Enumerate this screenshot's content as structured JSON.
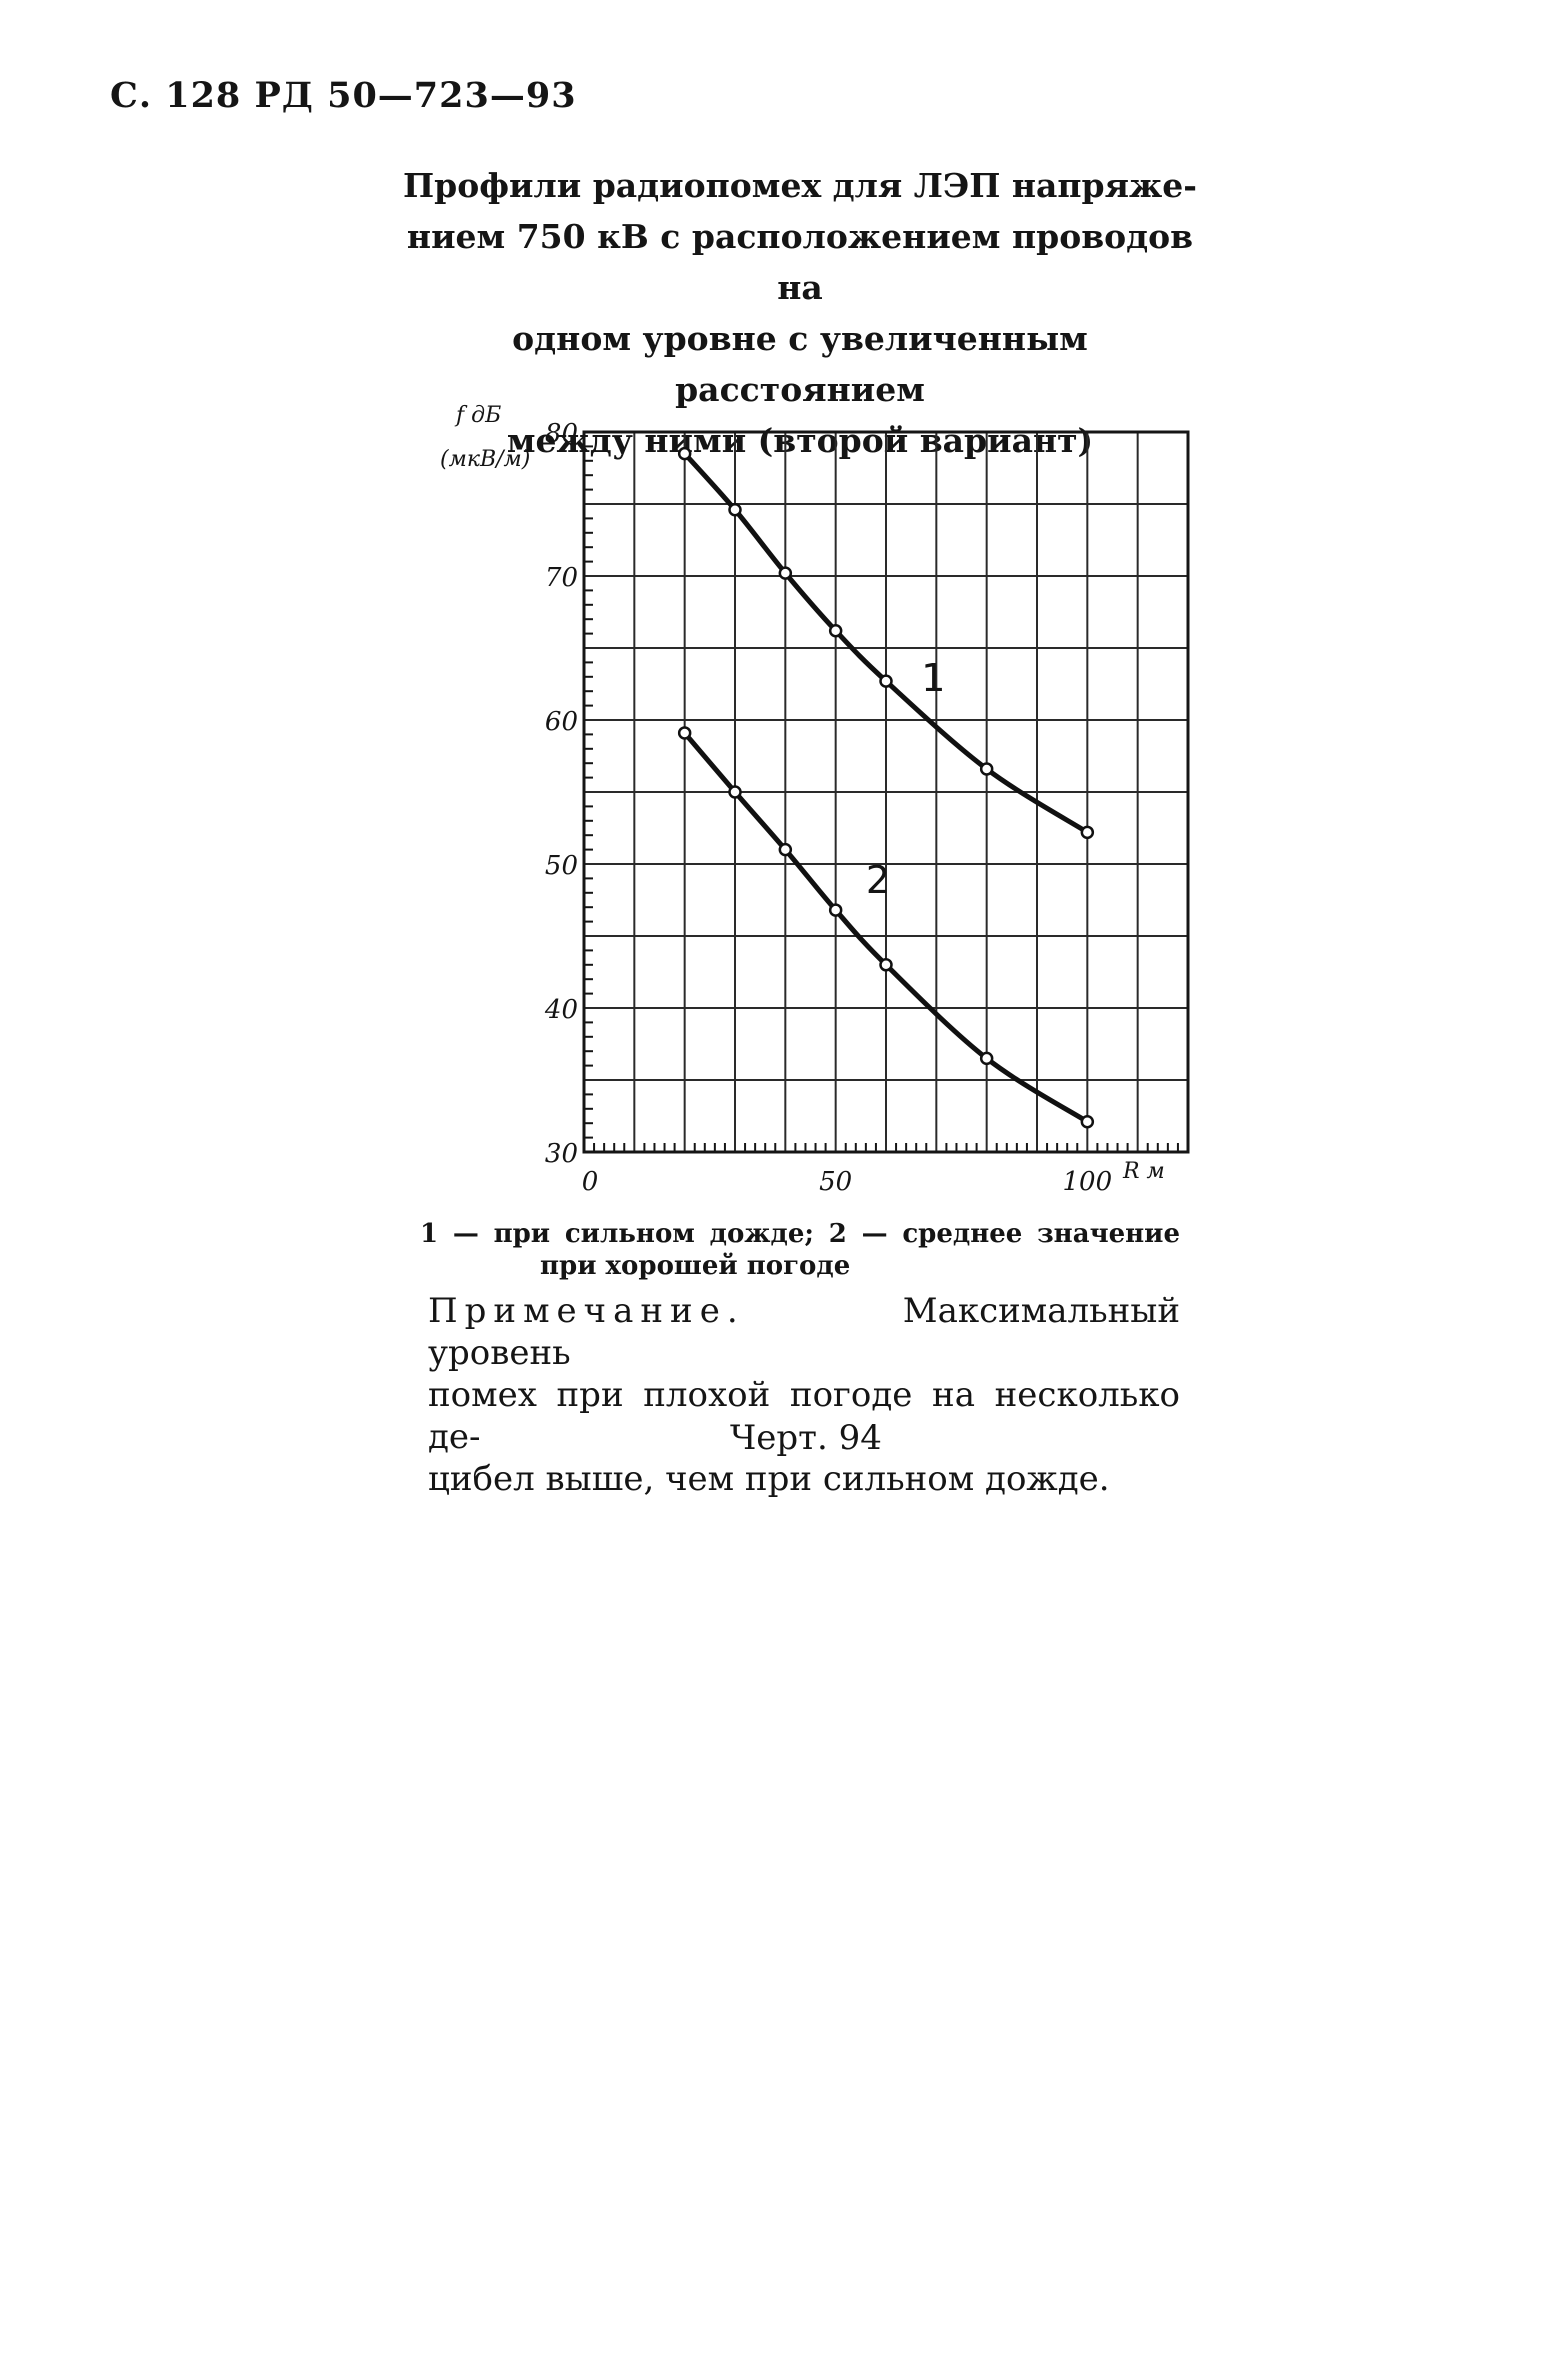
{
  "page": {
    "header": "С. 128 РД 50—723—93",
    "title_lines": [
      "Профили радиопомех для ЛЭП напряже-",
      "нием 750 кВ с расположением проводов на",
      "одном уровне с увеличенным расстоянием",
      "между ними (второй вариант)"
    ],
    "legend_line1": "1 — при сильном дожде; 2 — среднее значение",
    "legend_line2": "при хорошей погоде",
    "note_label": "Примечание.",
    "note_line1_rest": "Максимальный уровень",
    "note_line2": "помех при плохой погоде на несколько де-",
    "note_line3": "цибел выше, чем при сильном дожде.",
    "figure_label": "Черт. 94"
  },
  "chart_data": {
    "type": "line",
    "ylabel_lines": [
      "f дБ",
      "(мкВ/м)"
    ],
    "xlabel": "R м",
    "xlim": [
      0,
      120
    ],
    "ylim": [
      30,
      80
    ],
    "x_ticks": [
      0,
      50,
      100
    ],
    "x_tick_labels": [
      "0",
      "50",
      "100"
    ],
    "y_ticks": [
      30,
      40,
      50,
      60,
      70,
      80
    ],
    "y_tick_labels": [
      "30",
      "40",
      "50",
      "60",
      "70",
      "80"
    ],
    "grid": true,
    "series": [
      {
        "name": "1",
        "x": [
          20,
          30,
          40,
          50,
          60,
          80,
          100
        ],
        "y": [
          78.5,
          74.6,
          70.2,
          66.2,
          62.7,
          56.6,
          52.2
        ]
      },
      {
        "name": "2",
        "x": [
          20,
          30,
          40,
          50,
          60,
          80,
          100
        ],
        "y": [
          59.1,
          55.0,
          51.0,
          46.8,
          43.0,
          36.5,
          32.1
        ]
      }
    ]
  }
}
